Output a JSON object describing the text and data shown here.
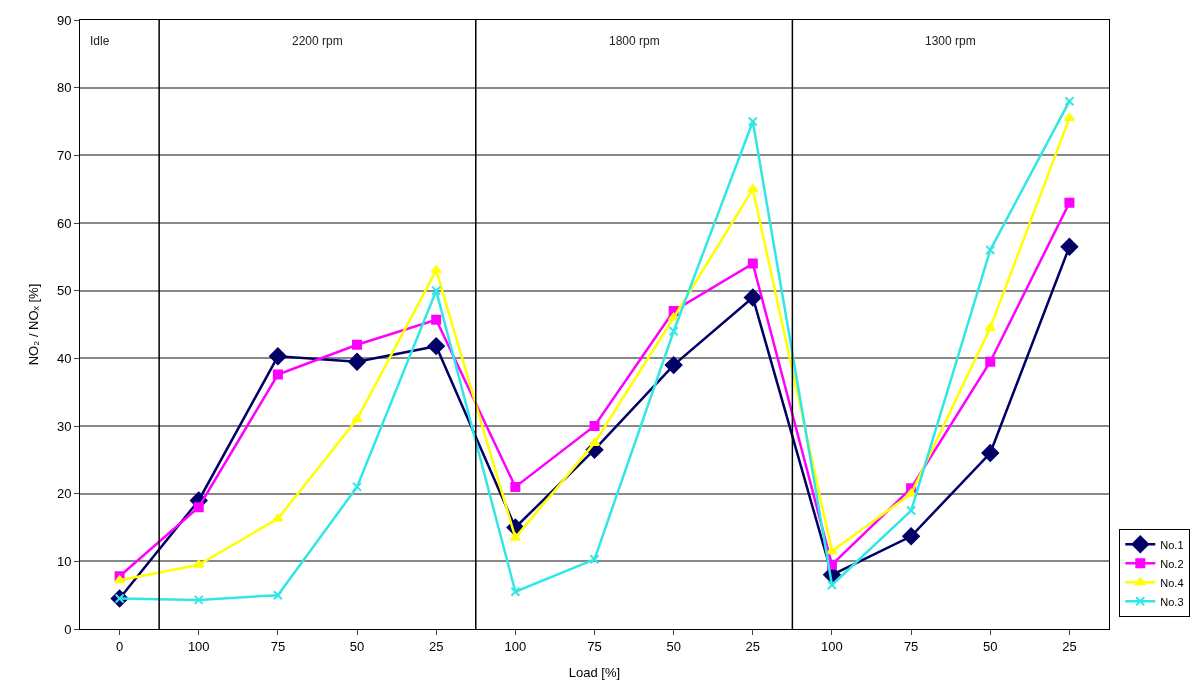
{
  "chart_data": {
    "type": "line",
    "xlabel": "Load [%]",
    "ylabel": "NO₂ / NOₓ [%]",
    "categories": [
      "0",
      "100",
      "75",
      "50",
      "25",
      "100",
      "75",
      "50",
      "25",
      "100",
      "75",
      "50",
      "25"
    ],
    "annotations": [
      "Idle",
      "2200 rpm",
      "1800 rpm",
      "1300 rpm"
    ],
    "ylim": [
      0,
      90
    ],
    "yticks": [
      0,
      10,
      20,
      30,
      40,
      50,
      60,
      70,
      80,
      90
    ],
    "grid": "y",
    "legend": "bottom right",
    "series": [
      {
        "name": "No.1",
        "color": "#000066",
        "marker": "diamond",
        "values": [
          4.5,
          19,
          40.3,
          39.5,
          41.8,
          15,
          26.5,
          39,
          49,
          8,
          13.7,
          26,
          56.5
        ]
      },
      {
        "name": "No.2",
        "color": "#ff00ff",
        "marker": "square",
        "values": [
          7.8,
          18,
          37.6,
          42,
          45.7,
          21,
          30,
          47,
          54,
          9.5,
          20.8,
          39.5,
          63
        ]
      },
      {
        "name": "No.4",
        "color": "#ffff00",
        "marker": "triangle",
        "values": [
          7.2,
          9.5,
          16.3,
          31,
          53,
          13.5,
          27.5,
          46,
          65,
          11.5,
          20,
          44.5,
          75.5
        ]
      },
      {
        "name": "No.3",
        "color": "#33e6e6",
        "marker": "cross",
        "values": [
          4.5,
          4.3,
          5,
          21,
          50,
          5.5,
          10.3,
          44,
          75,
          6.5,
          17.5,
          56,
          78
        ]
      }
    ]
  }
}
